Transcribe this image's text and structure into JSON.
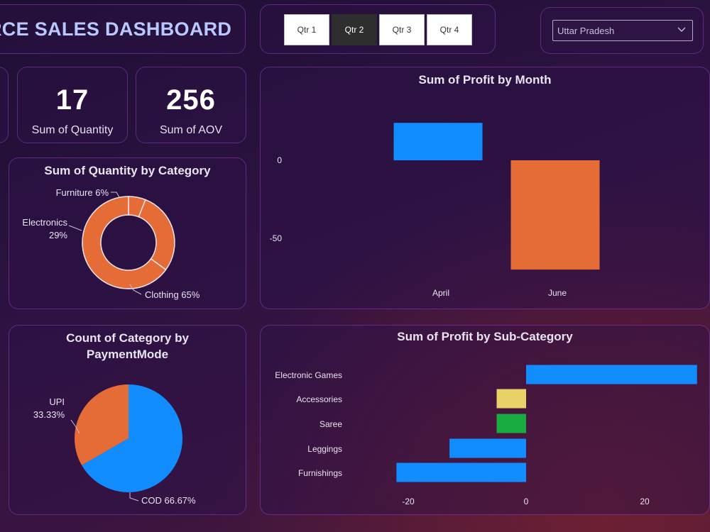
{
  "header": {
    "title": "RCE SALES DASHBOARD"
  },
  "quarter_slicer": {
    "options": [
      "Qtr 1",
      "Qtr 2",
      "Qtr 3",
      "Qtr 4"
    ],
    "selected": "Qtr 2"
  },
  "state_filter": {
    "selected": "Uttar Pradesh"
  },
  "kpis": {
    "quantity": {
      "value": "17",
      "label": "Sum of Quantity"
    },
    "aov": {
      "value": "256",
      "label": "Sum of AOV"
    }
  },
  "colors": {
    "blue": "#118dff",
    "orange": "#e66c37",
    "yellow": "#e8d166",
    "green": "#1aab40"
  },
  "chart_data": [
    {
      "type": "donut",
      "title": "Sum of Quantity by Category",
      "slices": [
        {
          "label": "Furniture 6%",
          "category": "Furniture",
          "percent": 6
        },
        {
          "label": "Electronics",
          "label2": "29%",
          "category": "Electronics",
          "percent": 29
        },
        {
          "label": "Clothing 65%",
          "category": "Clothing",
          "percent": 65
        }
      ]
    },
    {
      "type": "pie",
      "title_line1": "Count of Category by",
      "title_line2": "PaymentMode",
      "slices": [
        {
          "label": "UPI",
          "label2": "33.33%",
          "category": "UPI",
          "percent": 33.33
        },
        {
          "label": "COD 66.67%",
          "category": "COD",
          "percent": 66.67
        }
      ]
    },
    {
      "type": "waterfall",
      "title": "Sum of Profit by Month",
      "categories": [
        "April",
        "June"
      ],
      "bars": [
        {
          "label": "April",
          "start": 0,
          "end": 24
        },
        {
          "label": "June",
          "start": 0,
          "end": -70
        }
      ],
      "yticks": [
        "0",
        "-50"
      ],
      "ylim": [
        -75,
        30
      ]
    },
    {
      "type": "bar",
      "orientation": "horizontal",
      "title": "Sum of Profit by Sub-Category",
      "categories": [
        "Electronic Games",
        "Accessories",
        "Saree",
        "Leggings",
        "Furnishings"
      ],
      "values": [
        29,
        -5,
        -5,
        -13,
        -22
      ],
      "xticks": [
        "-20",
        "0",
        "20"
      ],
      "xlim": [
        -22,
        29
      ]
    }
  ]
}
